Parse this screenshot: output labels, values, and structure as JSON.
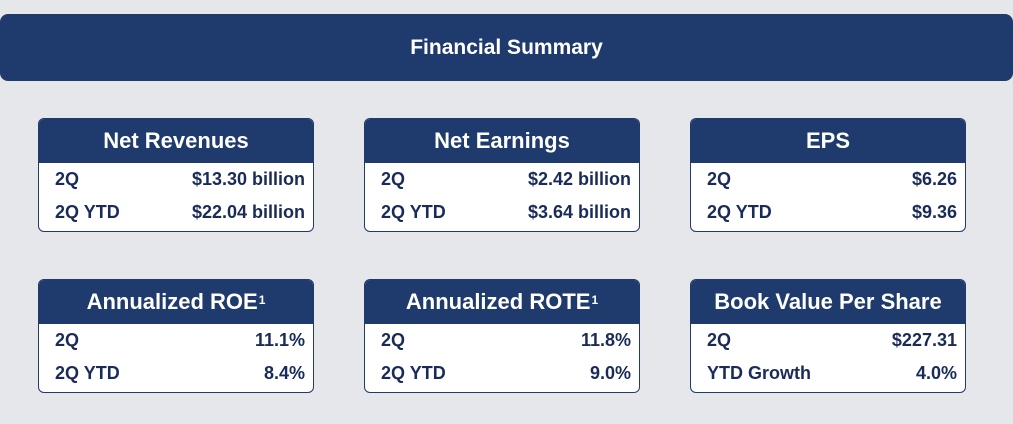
{
  "title": "Financial Summary",
  "cards": [
    {
      "title": "Net Revenues",
      "sup": "",
      "rows": [
        {
          "label": "2Q",
          "value": "$13.30 billion"
        },
        {
          "label": "2Q YTD",
          "value": "$22.04 billion"
        }
      ]
    },
    {
      "title": "Net Earnings",
      "sup": "",
      "rows": [
        {
          "label": "2Q",
          "value": "$2.42 billion"
        },
        {
          "label": "2Q YTD",
          "value": "$3.64 billion"
        }
      ]
    },
    {
      "title": "EPS",
      "sup": "",
      "rows": [
        {
          "label": "2Q",
          "value": "$6.26"
        },
        {
          "label": "2Q YTD",
          "value": "$9.36"
        }
      ]
    },
    {
      "title": "Annualized ROE",
      "sup": "1",
      "rows": [
        {
          "label": "2Q",
          "value": "11.1%"
        },
        {
          "label": "2Q YTD",
          "value": "8.4%"
        }
      ]
    },
    {
      "title": "Annualized ROTE",
      "sup": "1",
      "rows": [
        {
          "label": "2Q",
          "value": "11.8%"
        },
        {
          "label": "2Q YTD",
          "value": "9.0%"
        }
      ]
    },
    {
      "title": "Book Value Per Share",
      "sup": "",
      "rows": [
        {
          "label": "2Q",
          "value": "$227.31"
        },
        {
          "label": "YTD Growth",
          "value": "4.0%"
        }
      ]
    }
  ]
}
